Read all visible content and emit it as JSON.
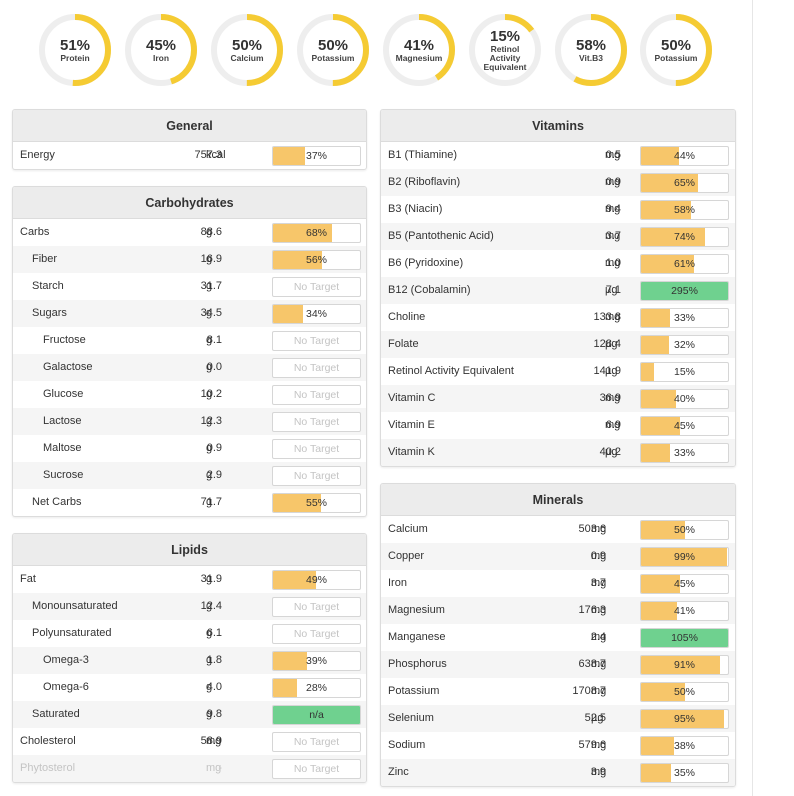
{
  "rings": [
    {
      "pct": "51%",
      "label": [
        "Protein"
      ],
      "value": 0.51
    },
    {
      "pct": "45%",
      "label": [
        "Iron"
      ],
      "value": 0.45
    },
    {
      "pct": "50%",
      "label": [
        "Calcium"
      ],
      "value": 0.5
    },
    {
      "pct": "50%",
      "label": [
        "Potassium"
      ],
      "value": 0.5
    },
    {
      "pct": "41%",
      "label": [
        "Magnesium"
      ],
      "value": 0.41
    },
    {
      "pct": "15%",
      "label": [
        "Retinol",
        "Activity",
        "Equivalent"
      ],
      "value": 0.15
    },
    {
      "pct": "58%",
      "label": [
        "Vit.B3"
      ],
      "value": 0.58
    },
    {
      "pct": "50%",
      "label": [
        "Potassium"
      ],
      "value": 0.5
    }
  ],
  "colors": {
    "ring_fill": "#f5cb33",
    "ring_track": "#eeeeee",
    "bar_fill": "#f7c66a",
    "bar_green": "#6fd18f"
  },
  "general": {
    "title": "General",
    "rows": [
      {
        "name": "Energy",
        "amount": "757.3",
        "unit": "kcal",
        "bar": "37%",
        "value": 0.37
      }
    ]
  },
  "carbohydrates": {
    "title": "Carbohydrates",
    "rows": [
      {
        "name": "Carbs",
        "amount": "88.6",
        "unit": "g",
        "bar": "68%",
        "value": 0.68,
        "indent": 0
      },
      {
        "name": "Fiber",
        "amount": "16.9",
        "unit": "g",
        "bar": "56%",
        "value": 0.56,
        "indent": 1
      },
      {
        "name": "Starch",
        "amount": "31.7",
        "unit": "g",
        "bar": "No Target",
        "value": null,
        "indent": 1
      },
      {
        "name": "Sugars",
        "amount": "34.5",
        "unit": "g",
        "bar": "34%",
        "value": 0.34,
        "indent": 1
      },
      {
        "name": "Fructose",
        "amount": "8.1",
        "unit": "g",
        "bar": "No Target",
        "value": null,
        "indent": 2
      },
      {
        "name": "Galactose",
        "amount": "0.0",
        "unit": "g",
        "bar": "No Target",
        "value": null,
        "indent": 2
      },
      {
        "name": "Glucose",
        "amount": "10.2",
        "unit": "g",
        "bar": "No Target",
        "value": null,
        "indent": 2
      },
      {
        "name": "Lactose",
        "amount": "12.3",
        "unit": "g",
        "bar": "No Target",
        "value": null,
        "indent": 2
      },
      {
        "name": "Maltose",
        "amount": "0.9",
        "unit": "g",
        "bar": "No Target",
        "value": null,
        "indent": 2
      },
      {
        "name": "Sucrose",
        "amount": "2.9",
        "unit": "g",
        "bar": "No Target",
        "value": null,
        "indent": 2
      },
      {
        "name": "Net Carbs",
        "amount": "71.7",
        "unit": "g",
        "bar": "55%",
        "value": 0.55,
        "indent": 1
      }
    ]
  },
  "lipids": {
    "title": "Lipids",
    "rows": [
      {
        "name": "Fat",
        "amount": "31.9",
        "unit": "g",
        "bar": "49%",
        "value": 0.49,
        "indent": 0
      },
      {
        "name": "Monounsaturated",
        "amount": "12.4",
        "unit": "g",
        "bar": "No Target",
        "value": null,
        "indent": 1
      },
      {
        "name": "Polyunsaturated",
        "amount": "6.1",
        "unit": "g",
        "bar": "No Target",
        "value": null,
        "indent": 1
      },
      {
        "name": "Omega-3",
        "amount": "1.8",
        "unit": "g",
        "bar": "39%",
        "value": 0.39,
        "indent": 2
      },
      {
        "name": "Omega-6",
        "amount": "4.0",
        "unit": "g",
        "bar": "28%",
        "value": 0.28,
        "indent": 2
      },
      {
        "name": "Saturated",
        "amount": "9.8",
        "unit": "g",
        "bar": "n/a",
        "value": 1.0,
        "green": true,
        "indent": 1
      },
      {
        "name": "Cholesterol",
        "amount": "58.9",
        "unit": "mg",
        "bar": "No Target",
        "value": null,
        "indent": 0
      },
      {
        "name": "Phytosterol",
        "amount": "-",
        "unit": "mg",
        "bar": "No Target",
        "value": null,
        "indent": 0,
        "dim": true
      }
    ]
  },
  "vitamins": {
    "title": "Vitamins",
    "rows": [
      {
        "name": "B1 (Thiamine)",
        "amount": "0.5",
        "unit": "mg",
        "bar": "44%",
        "value": 0.44
      },
      {
        "name": "B2 (Riboflavin)",
        "amount": "0.9",
        "unit": "mg",
        "bar": "65%",
        "value": 0.65
      },
      {
        "name": "B3 (Niacin)",
        "amount": "9.4",
        "unit": "mg",
        "bar": "58%",
        "value": 0.58
      },
      {
        "name": "B5 (Pantothenic Acid)",
        "amount": "3.7",
        "unit": "mg",
        "bar": "74%",
        "value": 0.74
      },
      {
        "name": "B6 (Pyridoxine)",
        "amount": "1.0",
        "unit": "mg",
        "bar": "61%",
        "value": 0.61
      },
      {
        "name": "B12 (Cobalamin)",
        "amount": "7.1",
        "unit": "µg",
        "bar": "295%",
        "value": 1.0,
        "green": true
      },
      {
        "name": "Choline",
        "amount": "133.8",
        "unit": "mg",
        "bar": "33%",
        "value": 0.33
      },
      {
        "name": "Folate",
        "amount": "128.4",
        "unit": "µg",
        "bar": "32%",
        "value": 0.32
      },
      {
        "name": "Retinol Activity Equivalent",
        "amount": "141.9",
        "unit": "µg",
        "bar": "15%",
        "value": 0.15
      },
      {
        "name": "Vitamin C",
        "amount": "36.9",
        "unit": "mg",
        "bar": "40%",
        "value": 0.4
      },
      {
        "name": "Vitamin E",
        "amount": "6.9",
        "unit": "mg",
        "bar": "45%",
        "value": 0.45
      },
      {
        "name": "Vitamin K",
        "amount": "40.2",
        "unit": "µg",
        "bar": "33%",
        "value": 0.33
      }
    ]
  },
  "minerals": {
    "title": "Minerals",
    "rows": [
      {
        "name": "Calcium",
        "amount": "503.6",
        "unit": "mg",
        "bar": "50%",
        "value": 0.5
      },
      {
        "name": "Copper",
        "amount": "0.9",
        "unit": "mg",
        "bar": "99%",
        "value": 0.99
      },
      {
        "name": "Iron",
        "amount": "3.7",
        "unit": "mg",
        "bar": "45%",
        "value": 0.45
      },
      {
        "name": "Magnesium",
        "amount": "176.3",
        "unit": "mg",
        "bar": "41%",
        "value": 0.41
      },
      {
        "name": "Manganese",
        "amount": "2.4",
        "unit": "mg",
        "bar": "105%",
        "value": 1.0,
        "green": true
      },
      {
        "name": "Phosphorus",
        "amount": "638.7",
        "unit": "mg",
        "bar": "91%",
        "value": 0.91
      },
      {
        "name": "Potassium",
        "amount": "1708.7",
        "unit": "mg",
        "bar": "50%",
        "value": 0.5
      },
      {
        "name": "Selenium",
        "amount": "52.5",
        "unit": "µg",
        "bar": "95%",
        "value": 0.95
      },
      {
        "name": "Sodium",
        "amount": "579.6",
        "unit": "mg",
        "bar": "38%",
        "value": 0.38
      },
      {
        "name": "Zinc",
        "amount": "3.9",
        "unit": "mg",
        "bar": "35%",
        "value": 0.35
      }
    ]
  }
}
